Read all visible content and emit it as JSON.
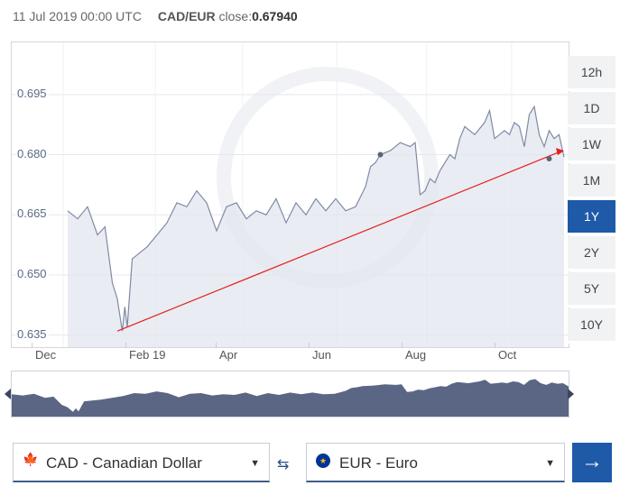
{
  "header": {
    "datetime": "11 Jul 2019 00:00 UTC",
    "pair": "CAD/EUR",
    "close_label": "close:",
    "close_value": "0.67940"
  },
  "timeframes": [
    "12h",
    "1D",
    "1W",
    "1M",
    "1Y",
    "2Y",
    "5Y",
    "10Y"
  ],
  "active_timeframe": "1Y",
  "chart_data": {
    "type": "area",
    "y_ticks": [
      "0.695",
      "0.680",
      "0.665",
      "0.650",
      "0.635"
    ],
    "ylim": [
      0.632,
      0.708
    ],
    "x_ticks": [
      "Dec",
      "Feb 19",
      "Apr",
      "Jun",
      "Aug",
      "Oct"
    ],
    "x": [
      0,
      0.02,
      0.04,
      0.06,
      0.075,
      0.09,
      0.1,
      0.11,
      0.115,
      0.12,
      0.13,
      0.14,
      0.16,
      0.18,
      0.2,
      0.22,
      0.24,
      0.26,
      0.28,
      0.3,
      0.32,
      0.34,
      0.36,
      0.38,
      0.4,
      0.42,
      0.44,
      0.46,
      0.48,
      0.5,
      0.52,
      0.54,
      0.56,
      0.58,
      0.6,
      0.61,
      0.62,
      0.63,
      0.65,
      0.67,
      0.69,
      0.7,
      0.71,
      0.72,
      0.73,
      0.74,
      0.75,
      0.77,
      0.78,
      0.79,
      0.8,
      0.82,
      0.84,
      0.85,
      0.86,
      0.87,
      0.88,
      0.89,
      0.9,
      0.91,
      0.92,
      0.93,
      0.94,
      0.95,
      0.96,
      0.97,
      0.98,
      0.99,
      1.0
    ],
    "values": [
      0.666,
      0.664,
      0.667,
      0.66,
      0.662,
      0.648,
      0.644,
      0.636,
      0.642,
      0.637,
      0.654,
      0.655,
      0.657,
      0.66,
      0.663,
      0.668,
      0.667,
      0.671,
      0.668,
      0.661,
      0.667,
      0.668,
      0.664,
      0.666,
      0.665,
      0.669,
      0.663,
      0.668,
      0.665,
      0.669,
      0.666,
      0.669,
      0.666,
      0.667,
      0.672,
      0.677,
      0.678,
      0.68,
      0.681,
      0.683,
      0.682,
      0.683,
      0.67,
      0.671,
      0.674,
      0.673,
      0.676,
      0.68,
      0.679,
      0.684,
      0.687,
      0.685,
      0.688,
      0.691,
      0.684,
      0.685,
      0.686,
      0.685,
      0.688,
      0.687,
      0.682,
      0.69,
      0.692,
      0.685,
      0.682,
      0.686,
      0.684,
      0.685,
      0.6794
    ],
    "trendline": {
      "from": [
        0.1,
        0.636
      ],
      "to": [
        1.0,
        0.681
      ]
    }
  },
  "from_currency": {
    "flag": "🍁",
    "label": "CAD - Canadian Dollar"
  },
  "to_currency": {
    "flag": "★",
    "label": "EUR - Euro"
  },
  "icons": {
    "swap": "⇆",
    "go": "→",
    "caret": "▼"
  },
  "colors": {
    "accent": "#1e5aa8",
    "area": "#e3e6ef",
    "line": "#7f8aa4",
    "trend": "#e0201b",
    "nav": "#5b6685"
  }
}
